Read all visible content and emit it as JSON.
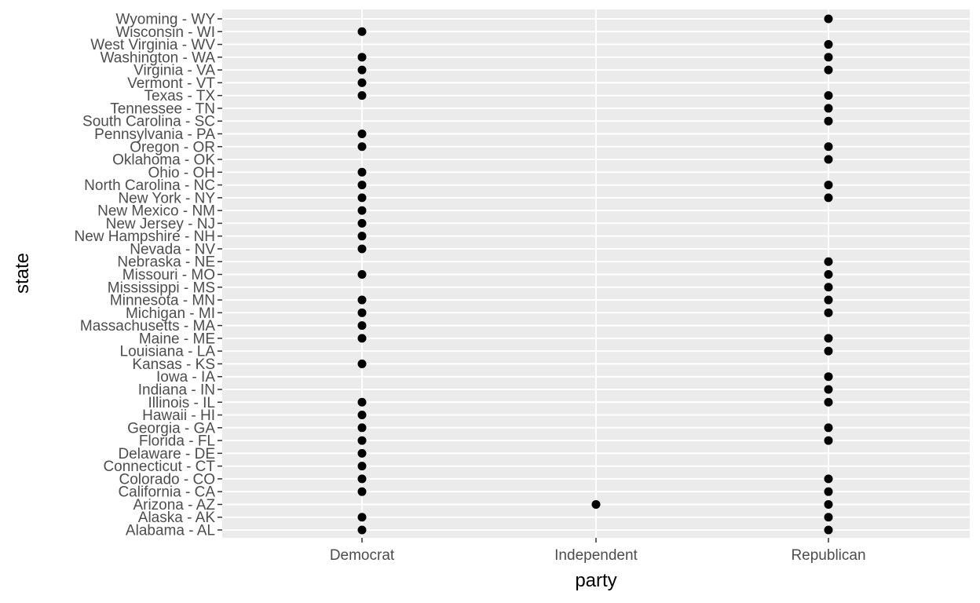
{
  "chart_data": {
    "type": "scatter",
    "title": "",
    "xlabel": "party",
    "ylabel": "state",
    "x_categories": [
      "Democrat",
      "Independent",
      "Republican"
    ],
    "y_categories": [
      "Alabama - AL",
      "Alaska - AK",
      "Arizona - AZ",
      "California - CA",
      "Colorado - CO",
      "Connecticut - CT",
      "Delaware - DE",
      "Florida - FL",
      "Georgia - GA",
      "Hawaii - HI",
      "Illinois - IL",
      "Indiana - IN",
      "Iowa - IA",
      "Kansas - KS",
      "Louisiana - LA",
      "Maine - ME",
      "Massachusetts - MA",
      "Michigan - MI",
      "Minnesota - MN",
      "Mississippi - MS",
      "Missouri - MO",
      "Nebraska - NE",
      "Nevada - NV",
      "New Hampshire - NH",
      "New Jersey - NJ",
      "New Mexico - NM",
      "New York - NY",
      "North Carolina - NC",
      "Ohio - OH",
      "Oklahoma - OK",
      "Oregon - OR",
      "Pennsylvania - PA",
      "South Carolina - SC",
      "Tennessee - TN",
      "Texas - TX",
      "Vermont - VT",
      "Virginia - VA",
      "Washington - WA",
      "West Virginia - WV",
      "Wisconsin - WI",
      "Wyoming - WY"
    ],
    "points": [
      {
        "state": "Alabama - AL",
        "party": "Democrat"
      },
      {
        "state": "Alabama - AL",
        "party": "Republican"
      },
      {
        "state": "Alaska - AK",
        "party": "Democrat"
      },
      {
        "state": "Alaska - AK",
        "party": "Republican"
      },
      {
        "state": "Arizona - AZ",
        "party": "Independent"
      },
      {
        "state": "Arizona - AZ",
        "party": "Republican"
      },
      {
        "state": "California - CA",
        "party": "Democrat"
      },
      {
        "state": "California - CA",
        "party": "Republican"
      },
      {
        "state": "Colorado - CO",
        "party": "Democrat"
      },
      {
        "state": "Colorado - CO",
        "party": "Republican"
      },
      {
        "state": "Connecticut - CT",
        "party": "Democrat"
      },
      {
        "state": "Delaware - DE",
        "party": "Democrat"
      },
      {
        "state": "Florida - FL",
        "party": "Democrat"
      },
      {
        "state": "Florida - FL",
        "party": "Republican"
      },
      {
        "state": "Georgia - GA",
        "party": "Democrat"
      },
      {
        "state": "Georgia - GA",
        "party": "Republican"
      },
      {
        "state": "Hawaii - HI",
        "party": "Democrat"
      },
      {
        "state": "Illinois - IL",
        "party": "Democrat"
      },
      {
        "state": "Illinois - IL",
        "party": "Republican"
      },
      {
        "state": "Indiana - IN",
        "party": "Republican"
      },
      {
        "state": "Iowa - IA",
        "party": "Republican"
      },
      {
        "state": "Kansas - KS",
        "party": "Democrat"
      },
      {
        "state": "Louisiana - LA",
        "party": "Republican"
      },
      {
        "state": "Maine - ME",
        "party": "Democrat"
      },
      {
        "state": "Maine - ME",
        "party": "Republican"
      },
      {
        "state": "Massachusetts - MA",
        "party": "Democrat"
      },
      {
        "state": "Michigan - MI",
        "party": "Democrat"
      },
      {
        "state": "Michigan - MI",
        "party": "Republican"
      },
      {
        "state": "Minnesota - MN",
        "party": "Democrat"
      },
      {
        "state": "Minnesota - MN",
        "party": "Republican"
      },
      {
        "state": "Mississippi - MS",
        "party": "Republican"
      },
      {
        "state": "Missouri - MO",
        "party": "Democrat"
      },
      {
        "state": "Missouri - MO",
        "party": "Republican"
      },
      {
        "state": "Nebraska - NE",
        "party": "Republican"
      },
      {
        "state": "Nevada - NV",
        "party": "Democrat"
      },
      {
        "state": "New Hampshire - NH",
        "party": "Democrat"
      },
      {
        "state": "New Jersey - NJ",
        "party": "Democrat"
      },
      {
        "state": "New Mexico - NM",
        "party": "Democrat"
      },
      {
        "state": "New York - NY",
        "party": "Democrat"
      },
      {
        "state": "New York - NY",
        "party": "Republican"
      },
      {
        "state": "North Carolina - NC",
        "party": "Democrat"
      },
      {
        "state": "North Carolina - NC",
        "party": "Republican"
      },
      {
        "state": "Ohio - OH",
        "party": "Democrat"
      },
      {
        "state": "Oklahoma - OK",
        "party": "Republican"
      },
      {
        "state": "Oregon - OR",
        "party": "Democrat"
      },
      {
        "state": "Oregon - OR",
        "party": "Republican"
      },
      {
        "state": "Pennsylvania - PA",
        "party": "Democrat"
      },
      {
        "state": "South Carolina - SC",
        "party": "Republican"
      },
      {
        "state": "Tennessee - TN",
        "party": "Republican"
      },
      {
        "state": "Texas - TX",
        "party": "Democrat"
      },
      {
        "state": "Texas - TX",
        "party": "Republican"
      },
      {
        "state": "Vermont - VT",
        "party": "Democrat"
      },
      {
        "state": "Virginia - VA",
        "party": "Democrat"
      },
      {
        "state": "Virginia - VA",
        "party": "Republican"
      },
      {
        "state": "Washington - WA",
        "party": "Democrat"
      },
      {
        "state": "Washington - WA",
        "party": "Republican"
      },
      {
        "state": "West Virginia - WV",
        "party": "Republican"
      },
      {
        "state": "Wisconsin - WI",
        "party": "Democrat"
      },
      {
        "state": "Wyoming - WY",
        "party": "Republican"
      }
    ],
    "grid": true,
    "legend": "none",
    "colors": {
      "panel_background": "#ebebeb",
      "gridline": "#ffffff",
      "point": "#000000",
      "tick_label": "#4d4d4d",
      "axis_title": "#000000"
    }
  }
}
